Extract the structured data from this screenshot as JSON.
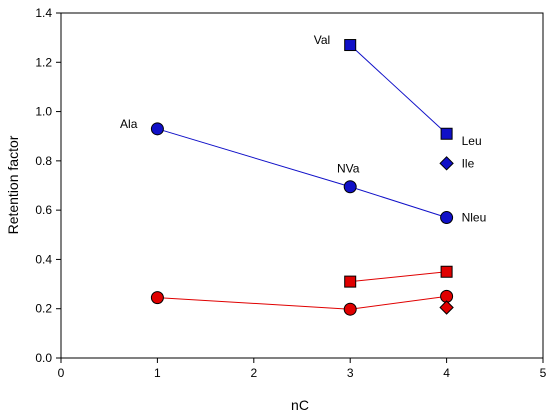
{
  "chart_data": {
    "type": "scatter",
    "xlabel": "nC",
    "ylabel": "Retention factor",
    "xlim": [
      0,
      5
    ],
    "ylim": [
      0,
      1.4
    ],
    "x_ticks": [
      0,
      1,
      2,
      3,
      4,
      5
    ],
    "y_ticks": [
      0.0,
      0.2,
      0.4,
      0.6,
      0.8,
      1.0,
      1.2,
      1.4
    ],
    "x_tick_labels": [
      "0",
      "1",
      "2",
      "3",
      "4",
      "5"
    ],
    "y_tick_labels": [
      "0.0",
      "0.2",
      "0.4",
      "0.6",
      "0.8",
      "1.0",
      "1.2",
      "1.4"
    ],
    "grid": false,
    "series": [
      {
        "key": "blue-circles",
        "marker": "circle",
        "color": "#1010c8",
        "line": true,
        "points": [
          {
            "x": 1,
            "y": 0.93
          },
          {
            "x": 3,
            "y": 0.695
          },
          {
            "x": 4,
            "y": 0.57
          }
        ]
      },
      {
        "key": "blue-squares",
        "marker": "square",
        "color": "#1010c8",
        "line": true,
        "points": [
          {
            "x": 3,
            "y": 1.27
          },
          {
            "x": 4,
            "y": 0.91
          }
        ]
      },
      {
        "key": "blue-diamond",
        "marker": "diamond",
        "color": "#1010c8",
        "line": false,
        "points": [
          {
            "x": 4,
            "y": 0.79
          }
        ]
      },
      {
        "key": "red-circles",
        "marker": "circle",
        "color": "#e00000",
        "line": true,
        "points": [
          {
            "x": 1,
            "y": 0.245
          },
          {
            "x": 3,
            "y": 0.198
          },
          {
            "x": 4,
            "y": 0.25
          }
        ]
      },
      {
        "key": "red-squares",
        "marker": "square",
        "color": "#e00000",
        "line": true,
        "points": [
          {
            "x": 3,
            "y": 0.31
          },
          {
            "x": 4,
            "y": 0.35
          }
        ]
      },
      {
        "key": "red-diamond",
        "marker": "diamond",
        "color": "#e00000",
        "line": false,
        "points": [
          {
            "x": 4,
            "y": 0.205
          }
        ]
      }
    ],
    "annotations": [
      {
        "text": "Ala",
        "x": 1,
        "y": 0.93,
        "position": "left"
      },
      {
        "text": "NVa",
        "x": 3,
        "y": 0.695,
        "position": "above"
      },
      {
        "text": "Nleu",
        "x": 4,
        "y": 0.57,
        "position": "right"
      },
      {
        "text": "Val",
        "x": 3,
        "y": 1.27,
        "position": "left"
      },
      {
        "text": "Leu",
        "x": 4,
        "y": 0.91,
        "position": "below-right"
      },
      {
        "text": "Ile",
        "x": 4,
        "y": 0.79,
        "position": "right"
      }
    ]
  }
}
